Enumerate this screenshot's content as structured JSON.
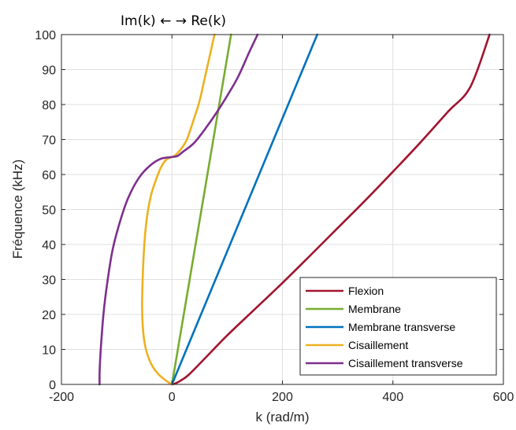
{
  "chart_data": {
    "type": "line",
    "title": "Im(k) ←   → Re(k)",
    "xlabel": "k (rad/m)",
    "ylabel": "Fréquence (kHz)",
    "xlim": [
      -200,
      600
    ],
    "ylim": [
      0,
      100
    ],
    "xticks": [
      -200,
      0,
      200,
      400,
      600
    ],
    "yticks": [
      0,
      10,
      20,
      30,
      40,
      50,
      60,
      70,
      80,
      90,
      100
    ],
    "xtick_labels": [
      "-200",
      "0",
      "200",
      "400",
      "600"
    ],
    "ytick_labels": [
      "0",
      "10",
      "20",
      "30",
      "40",
      "50",
      "60",
      "70",
      "80",
      "90",
      "100"
    ],
    "grid": true,
    "legend_position": "bottom-right",
    "series": [
      {
        "name": "Flexion",
        "color": "#a2142f",
        "points": [
          [
            0,
            0
          ],
          [
            5,
            0.2
          ],
          [
            15,
            1
          ],
          [
            30,
            2.7
          ],
          [
            60,
            7.5
          ],
          [
            100,
            14
          ],
          [
            150,
            21.5
          ],
          [
            200,
            29
          ],
          [
            250,
            36.8
          ],
          [
            300,
            44.7
          ],
          [
            350,
            52.6
          ],
          [
            400,
            60.8
          ],
          [
            450,
            69.2
          ],
          [
            500,
            78
          ],
          [
            540,
            85
          ],
          [
            575,
            100
          ]
        ]
      },
      {
        "name": "Membrane",
        "color": "#77ac30",
        "points": [
          [
            0,
            0
          ],
          [
            107,
            100
          ]
        ]
      },
      {
        "name": "Membrane transverse",
        "color": "#0072bd",
        "points": [
          [
            0,
            0
          ],
          [
            263,
            100
          ]
        ]
      },
      {
        "name": "Cisaillement",
        "color": "#edb120",
        "points": [
          [
            0,
            0
          ],
          [
            -10,
            1
          ],
          [
            -25,
            3
          ],
          [
            -38,
            6
          ],
          [
            -47,
            10
          ],
          [
            -52,
            15
          ],
          [
            -54,
            22
          ],
          [
            -53,
            30
          ],
          [
            -50,
            40
          ],
          [
            -45,
            48
          ],
          [
            -38,
            54
          ],
          [
            -30,
            58
          ],
          [
            -20,
            62
          ],
          [
            -10,
            64.3
          ],
          [
            0,
            65
          ],
          [
            5,
            65.4
          ],
          [
            15,
            67
          ],
          [
            27,
            70
          ],
          [
            40,
            76
          ],
          [
            50,
            81
          ],
          [
            60,
            88
          ],
          [
            70,
            95
          ],
          [
            77,
            100
          ]
        ]
      },
      {
        "name": "Cisaillement transverse",
        "color": "#7e2f8e",
        "points": [
          [
            -131,
            0
          ],
          [
            -131,
            3
          ],
          [
            -130,
            7
          ],
          [
            -128,
            12
          ],
          [
            -124,
            20
          ],
          [
            -118,
            28
          ],
          [
            -108,
            38
          ],
          [
            -95,
            46
          ],
          [
            -80,
            53
          ],
          [
            -60,
            59
          ],
          [
            -40,
            62.5
          ],
          [
            -20,
            64.5
          ],
          [
            0,
            65
          ],
          [
            10,
            65.3
          ],
          [
            20,
            66.5
          ],
          [
            40,
            69
          ],
          [
            60,
            73
          ],
          [
            80,
            77.5
          ],
          [
            100,
            82.5
          ],
          [
            120,
            88
          ],
          [
            140,
            95
          ],
          [
            155,
            100
          ]
        ]
      }
    ]
  }
}
